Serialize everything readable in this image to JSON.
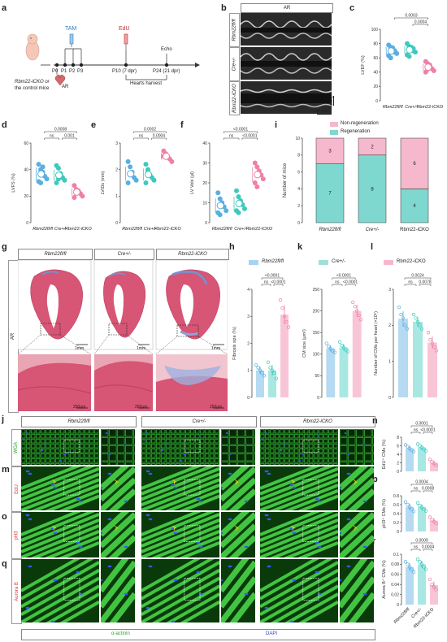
{
  "panels": {
    "a": "a",
    "b": "b",
    "c": "c",
    "d": "d",
    "e": "e",
    "f": "f",
    "g": "g",
    "h": "h",
    "i": "i",
    "j": "j",
    "k": "k",
    "l": "l",
    "m": "m",
    "n": "n",
    "o": "o",
    "p": "p",
    "q": "q",
    "r": "r"
  },
  "timeline": {
    "tam": "TAM",
    "edu": "EdU",
    "echo": "Echo",
    "mouse_label_1": "Rbm22-iCKO or",
    "mouse_label_2": "the control mice",
    "ar": "AR",
    "p0": "P0",
    "p1": "P1",
    "p2": "P2",
    "p3": "P3",
    "p10": "P10 (7 dpr)",
    "p24": "P24 (21 dpr)",
    "harvest": "Hearts harvest"
  },
  "echo": {
    "title": "AR",
    "rows": [
      "Rbm22fl/fl",
      "Cre+/-",
      "Rbm22-iCKO"
    ],
    "scale_v": "2 mm",
    "scale_h": "200 ms"
  },
  "groups": {
    "g1": "Rbm22fl/fl",
    "g2": "Cre+/-",
    "g3": "Rbm22-iCKO"
  },
  "colors": {
    "blue": "#5aaee0",
    "teal": "#3ec9be",
    "pink": "#f07fa6",
    "pink_light": "#f6b8cc",
    "teal_light": "#7fd8cf"
  },
  "legend": {
    "non_regen": "Non-regeneration",
    "regen": "Regeneration"
  },
  "charts": {
    "c": {
      "ylabel": "LVEF (%)",
      "ymax": 100,
      "ticks": [
        0,
        20,
        40,
        60,
        80,
        100
      ],
      "sig": [
        {
          "a": 0,
          "b": 2,
          "text": "0.0003"
        },
        {
          "a": 1,
          "b": 2,
          "text": "0.0004"
        }
      ],
      "points": [
        [
          78,
          75,
          72,
          68,
          66,
          63,
          60,
          74,
          70
        ],
        [
          80,
          76,
          72,
          70,
          68,
          64,
          62,
          75,
          73
        ],
        [
          55,
          52,
          48,
          45,
          42,
          40,
          44,
          50
        ]
      ]
    },
    "d": {
      "ylabel": "LVFS (%)",
      "ymax": 60,
      "ticks": [
        0,
        20,
        40,
        60
      ],
      "sig": [
        {
          "a": 0,
          "b": 2,
          "text": "0.0008"
        },
        {
          "a": 0,
          "b": 1,
          "text": "ns"
        },
        {
          "a": 1,
          "b": 2,
          "text": "0.001"
        }
      ],
      "points": [
        [
          44,
          40,
          38,
          35,
          33,
          31,
          30,
          42
        ],
        [
          43,
          41,
          37,
          34,
          32,
          30,
          33,
          36
        ],
        [
          28,
          25,
          24,
          22,
          20,
          19,
          23
        ]
      ]
    },
    "e": {
      "ylabel": "LVIDs (mm)",
      "ymax": 3,
      "ticks": [
        0,
        1,
        2,
        3
      ],
      "sig": [
        {
          "a": 0,
          "b": 2,
          "text": "0.0002"
        },
        {
          "a": 0,
          "b": 1,
          "text": "ns"
        },
        {
          "a": 1,
          "b": 2,
          "text": "0.0004"
        }
      ],
      "points": [
        [
          2.3,
          2.1,
          1.9,
          1.7,
          1.6,
          1.5,
          1.8
        ],
        [
          2.2,
          2.0,
          1.8,
          1.7,
          1.6,
          1.5,
          1.9
        ],
        [
          2.7,
          2.6,
          2.5,
          2.4,
          2.3,
          2.5
        ]
      ]
    },
    "f": {
      "ylabel": "LV Vols (μl)",
      "ymax": 40,
      "ticks": [
        0,
        10,
        20,
        30,
        40
      ],
      "sig": [
        {
          "a": 0,
          "b": 2,
          "text": "<0.0001"
        },
        {
          "a": 0,
          "b": 1,
          "text": "ns"
        },
        {
          "a": 1,
          "b": 2,
          "text": "<0.0001"
        }
      ],
      "points": [
        [
          15,
          12,
          10,
          8,
          6,
          5,
          4,
          9
        ],
        [
          16,
          13,
          11,
          9,
          7,
          6,
          5,
          10
        ],
        [
          30,
          28,
          26,
          24,
          22,
          20,
          18,
          25
        ]
      ]
    },
    "h": {
      "ylabel": "Fibrosis size (%)",
      "ymax": 4,
      "ticks": [
        0,
        1,
        2,
        3,
        4
      ],
      "sig": [
        {
          "a": 0,
          "b": 2,
          "text": "<0.0001"
        },
        {
          "a": 1,
          "b": 2,
          "text": "<0.0001"
        },
        {
          "a": 0,
          "b": 1,
          "text": "ns"
        }
      ],
      "points": [
        [
          1.2,
          1.1,
          1.0,
          0.9,
          0.8
        ],
        [
          1.3,
          1.1,
          1.0,
          0.9,
          0.7
        ],
        [
          3.6,
          3.3,
          3.0,
          2.8,
          2.6
        ]
      ]
    },
    "k": {
      "ylabel": "CM size (μm²)",
      "ymax": 250,
      "ticks": [
        0,
        50,
        100,
        150,
        200,
        250
      ],
      "sig": [
        {
          "a": 0,
          "b": 2,
          "text": "<0.0001"
        },
        {
          "a": 1,
          "b": 2,
          "text": "<0.0001"
        },
        {
          "a": 0,
          "b": 1,
          "text": "ns"
        }
      ],
      "points": [
        [
          125,
          118,
          112,
          108,
          104
        ],
        [
          128,
          120,
          115,
          110,
          106
        ],
        [
          220,
          210,
          200,
          190,
          180
        ]
      ]
    },
    "l": {
      "ylabel": "Number of CMs per heart (×10⁶)",
      "ymax": 3,
      "ticks": [
        0,
        1,
        2,
        3
      ],
      "sig": [
        {
          "a": 0,
          "b": 2,
          "text": "0.0024"
        },
        {
          "a": 0,
          "b": 1,
          "text": "ns"
        },
        {
          "a": 1,
          "b": 2,
          "text": "0.0078"
        }
      ],
      "points": [
        [
          2.5,
          2.3,
          2.2,
          2.0,
          1.9
        ],
        [
          2.3,
          2.2,
          2.1,
          2.0,
          1.9
        ],
        [
          1.8,
          1.6,
          1.5,
          1.4,
          1.3
        ]
      ]
    },
    "n": {
      "ylabel": "EdU⁺ CMs (%)",
      "ymax": 8,
      "ticks": [
        0,
        2,
        4,
        6,
        8
      ],
      "sig": [
        {
          "a": 0,
          "b": 2,
          "text": "0.0001"
        },
        {
          "a": 0,
          "b": 1,
          "text": "ns"
        },
        {
          "a": 1,
          "b": 2,
          "text": "<0.0001"
        }
      ],
      "points": [
        [
          6.2,
          5.8,
          5.4,
          5.0,
          4.6
        ],
        [
          6.4,
          6.0,
          5.6,
          5.2,
          4.8
        ],
        [
          2.8,
          2.2,
          1.8,
          1.4
        ]
      ]
    },
    "p": {
      "ylabel": "pH3⁺ CMs (%)",
      "ymax": 0.8,
      "ticks": [
        0,
        0.2,
        0.4,
        0.6,
        0.8
      ],
      "sig": [
        {
          "a": 0,
          "b": 2,
          "text": "0.0004"
        },
        {
          "a": 0,
          "b": 1,
          "text": "ns"
        },
        {
          "a": 1,
          "b": 2,
          "text": "0.0008"
        }
      ],
      "points": [
        [
          0.66,
          0.6,
          0.55,
          0.5,
          0.45
        ],
        [
          0.64,
          0.58,
          0.54,
          0.5,
          0.46
        ],
        [
          0.32,
          0.26,
          0.22,
          0.18
        ]
      ]
    },
    "r": {
      "ylabel": "Aurora B⁺ CMs (%)",
      "ymax": 0.1,
      "ticks": [
        0,
        0.02,
        0.04,
        0.06,
        0.08,
        0.1
      ],
      "sig": [
        {
          "a": 0,
          "b": 2,
          "text": "0.0009"
        },
        {
          "a": 0,
          "b": 1,
          "text": "ns"
        },
        {
          "a": 1,
          "b": 2,
          "text": "0.0004"
        }
      ],
      "points": [
        [
          0.085,
          0.08,
          0.075,
          0.07,
          0.065
        ],
        [
          0.09,
          0.085,
          0.08,
          0.075,
          0.07
        ],
        [
          0.05,
          0.04,
          0.035,
          0.03
        ]
      ]
    }
  },
  "chart_i": {
    "ylabel": "Number of mice",
    "ticks": [
      0,
      2,
      4,
      6,
      8,
      10
    ],
    "bars": [
      {
        "regen": 7,
        "non": 3
      },
      {
        "regen": 8,
        "non": 2
      },
      {
        "regen": 4,
        "non": 6
      }
    ]
  },
  "histology": {
    "ar": "AR",
    "scale_top": "1mm",
    "scale_bottom": "250μm"
  },
  "legend_hkl": {
    "g1": "Rbm22fl/fl",
    "g2": "Cre+/-",
    "g3": "Rbm22-iCKO"
  },
  "micro_rows": [
    "WGA",
    "EdU",
    "pH3",
    "Aurora B"
  ],
  "bottom_legend": {
    "actinin": "α-actinin",
    "dapi": "DAPI"
  }
}
